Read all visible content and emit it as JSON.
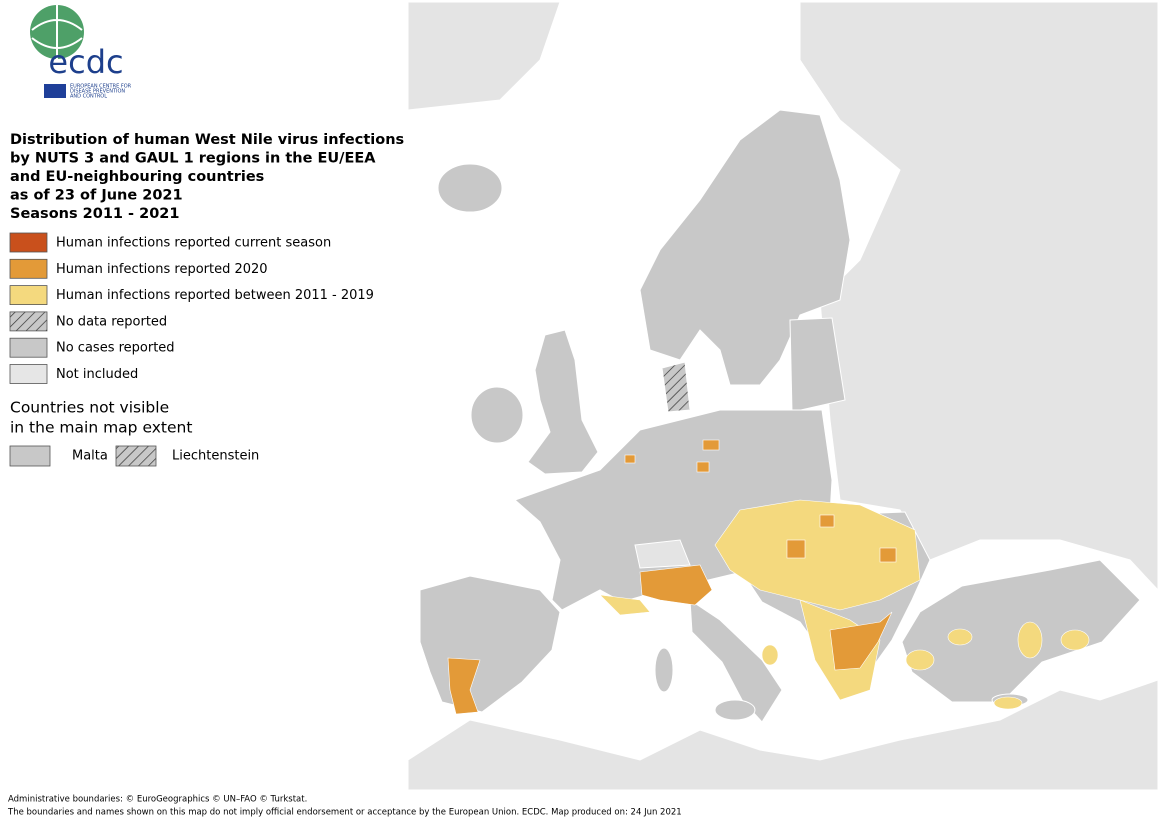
{
  "logo": {
    "name": "ecdc",
    "org": [
      "EUROPEAN CENTRE FOR",
      "DISEASE PREVENTION",
      "AND CONTROL"
    ]
  },
  "title": [
    "Distribution of human West Nile virus infections",
    "by NUTS 3 and GAUL 1 regions in the EU/EEA",
    "and EU-neighbouring countries",
    "as of 23 of June 2021",
    "Seasons 2011 - 2021"
  ],
  "legend": [
    {
      "label": "Human infections reported current season",
      "color": "#c9501c",
      "hatch": false
    },
    {
      "label": "Human infections reported 2020",
      "color": "#e39a38",
      "hatch": false
    },
    {
      "label": "Human infections reported between 2011 - 2019",
      "color": "#f4d97e",
      "hatch": false
    },
    {
      "label": "No data reported",
      "color": "#c8c8c8",
      "hatch": true
    },
    {
      "label": "No cases reported",
      "color": "#c8c8c8",
      "hatch": false
    },
    {
      "label": "Not included",
      "color": "#e6e6e6",
      "hatch": false
    }
  ],
  "inset": {
    "title": [
      "Countries not visible",
      "in the main map extent"
    ],
    "items": [
      {
        "label": "Malta",
        "color": "#c8c8c8",
        "hatch": false
      },
      {
        "label": "Liechtenstein",
        "color": "#c8c8c8",
        "hatch": true
      }
    ]
  },
  "footer": [
    "Administrative boundaries: © EuroGeographics © UN–FAO © Turkstat.",
    "The boundaries and names shown on this map do not imply official endorsement or acceptance by the European Union. ECDC. Map produced on: 24 Jun 2021"
  ]
}
